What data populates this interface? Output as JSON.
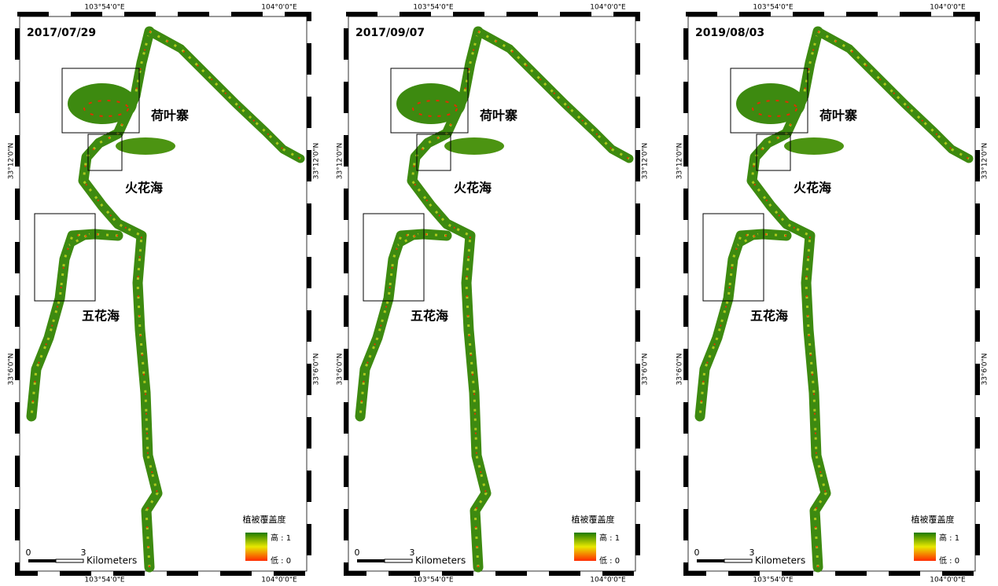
{
  "panels": [
    {
      "date": "2017/07/29"
    },
    {
      "date": "2017/09/07"
    },
    {
      "date": "2019/08/03"
    }
  ],
  "graticule": {
    "lon_west": "103°54'0\"E",
    "lon_east": "104°0'0\"E",
    "lat_north": "33°12'0\"N",
    "lat_south": "33°6'0\"N"
  },
  "places": {
    "heyezhai": "荷叶寨",
    "huohuahai": "火花海",
    "wuhuahai": "五花海"
  },
  "legend": {
    "title": "植被覆盖度",
    "high": "高 : 1",
    "low": "低 : 0"
  },
  "scale_bar": {
    "start": "0",
    "end": "3",
    "unit": "Kilometers"
  }
}
